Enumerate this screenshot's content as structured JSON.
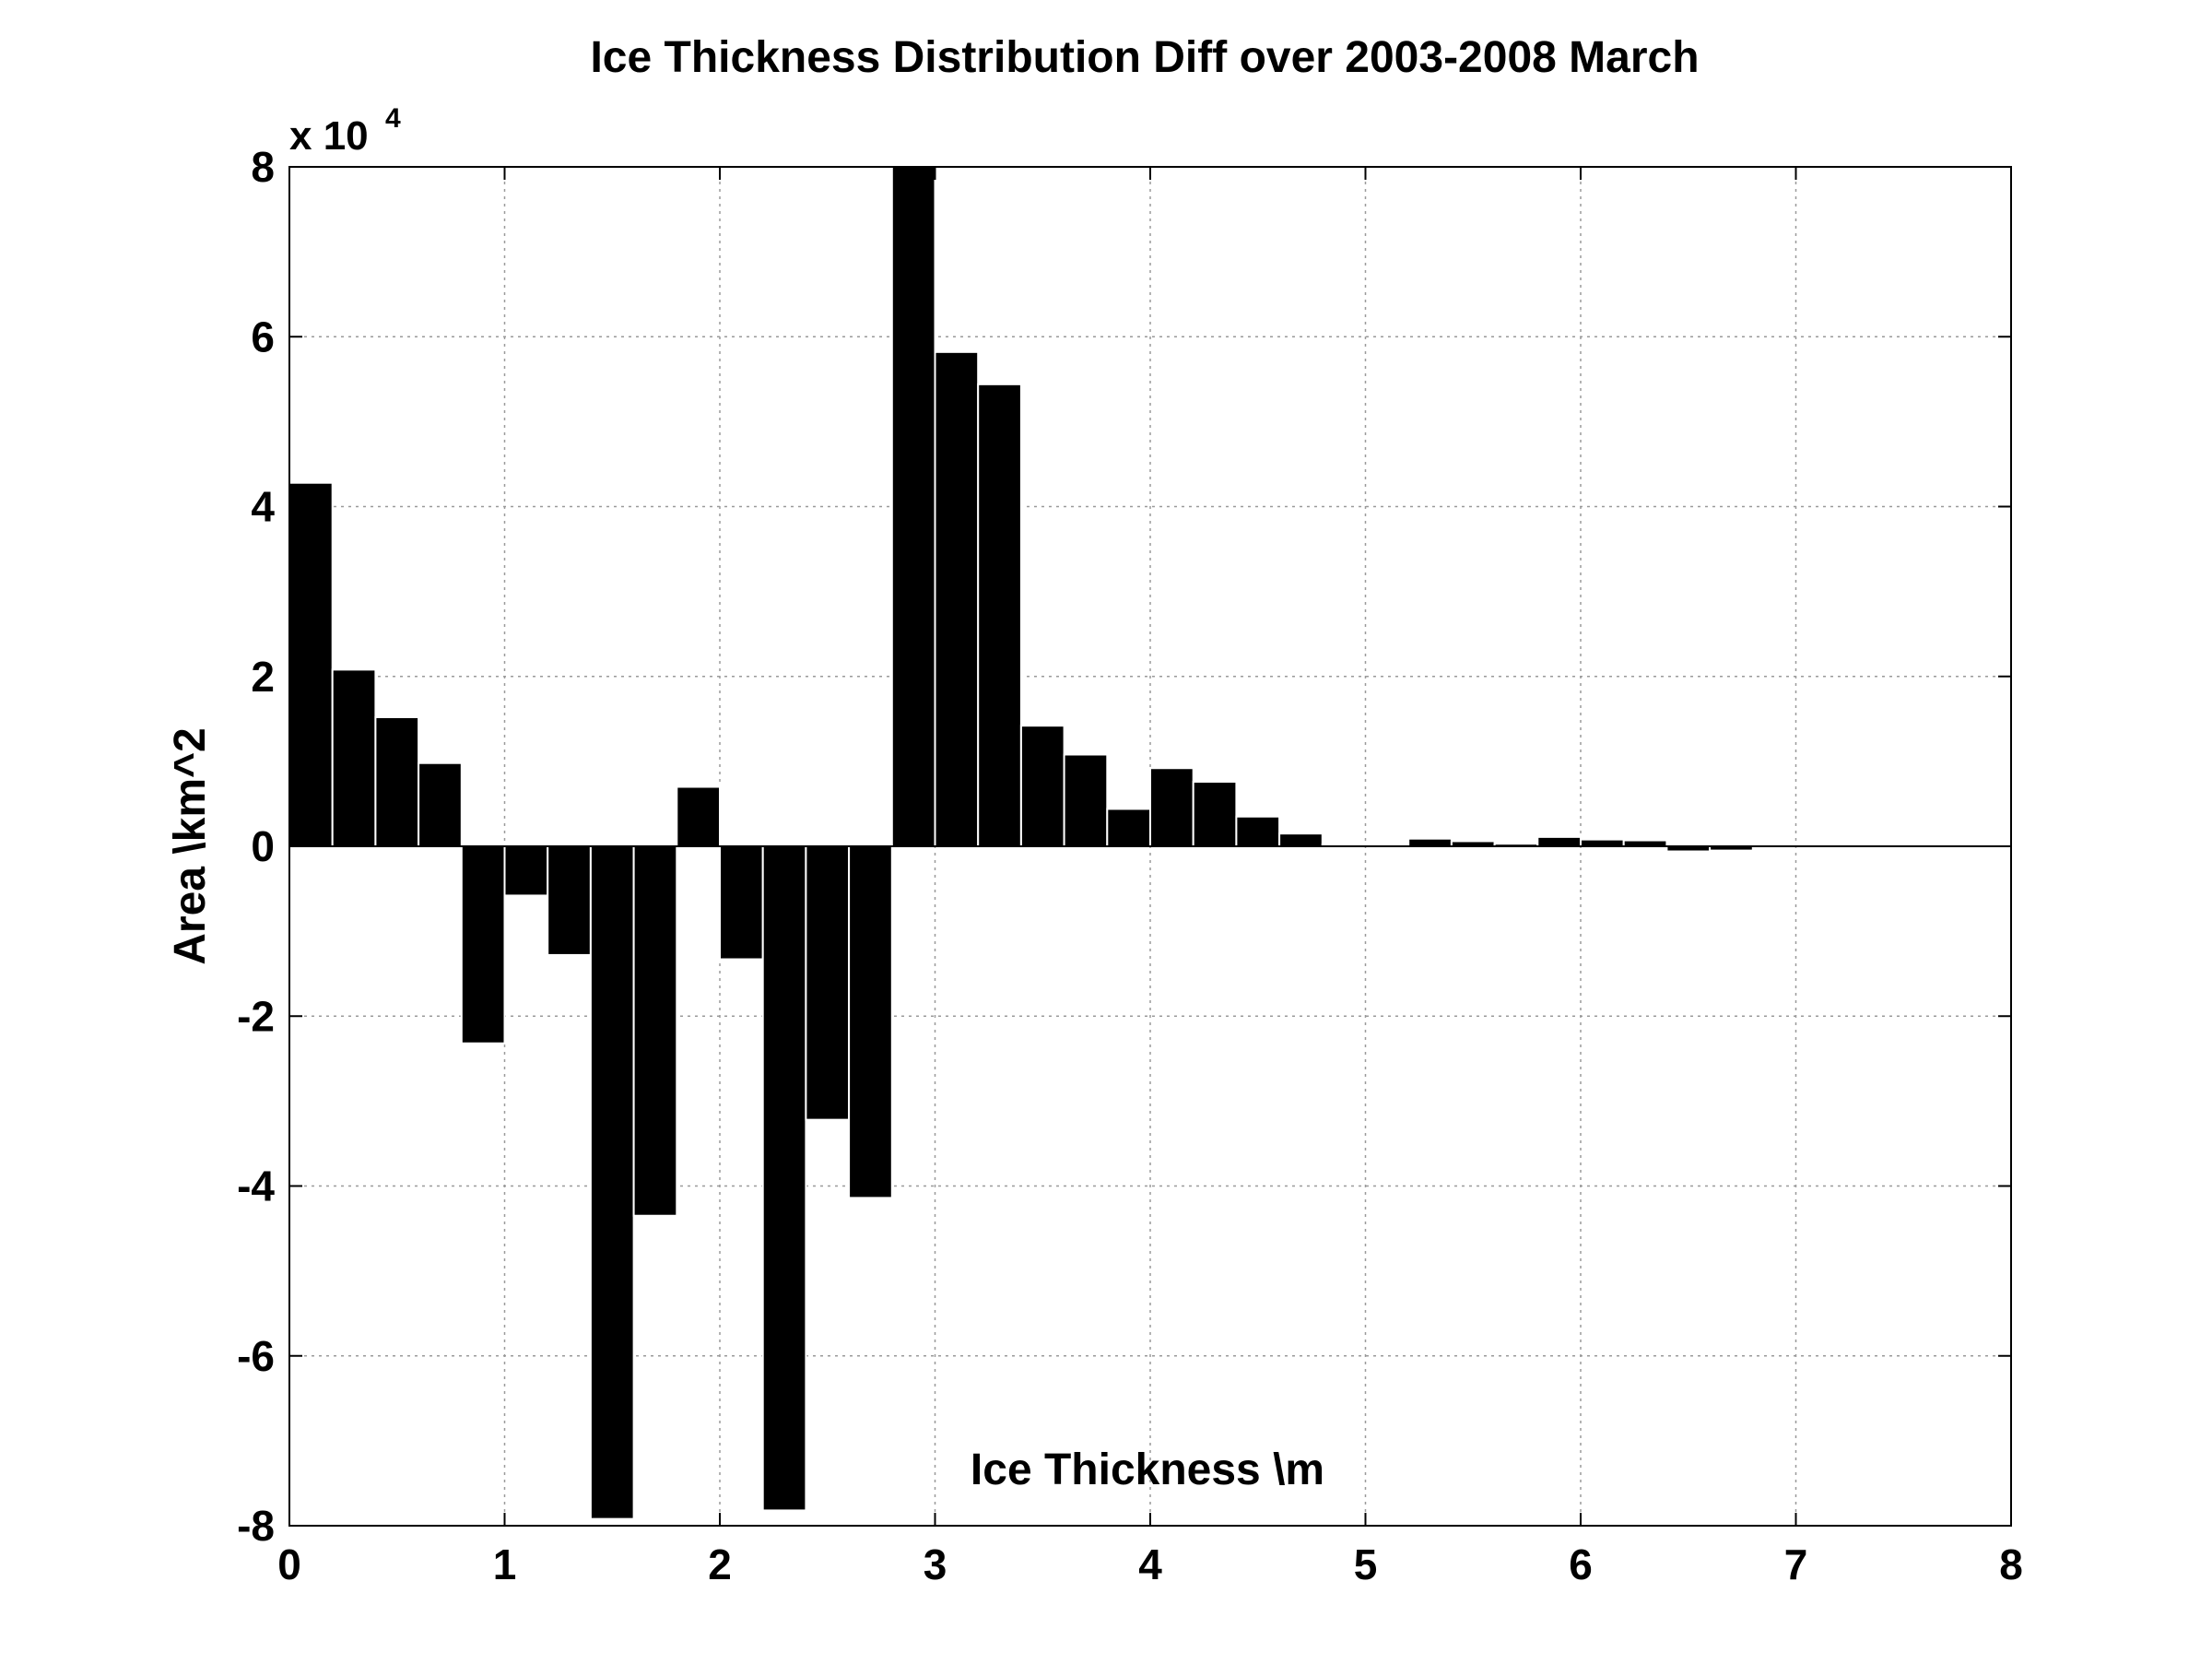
{
  "chart_data": {
    "type": "bar",
    "title": "Ice Thickness Distribution Diff over 2003-2008 March",
    "xlabel": "Ice Thickness \\m",
    "ylabel": "Area \\km^2",
    "y_exponent_label": {
      "base": "x 10",
      "power": "4"
    },
    "y_scale_factor": 10000,
    "xlim": [
      0,
      8
    ],
    "ylim": [
      -8,
      8
    ],
    "x_ticks": [
      0,
      1,
      2,
      3,
      4,
      5,
      6,
      7,
      8
    ],
    "y_ticks": [
      -8,
      -6,
      -4,
      -2,
      0,
      2,
      4,
      6,
      8
    ],
    "grid": true,
    "bar_width": 0.2,
    "bar_color": "#000000",
    "x": [
      0.1,
      0.3,
      0.5,
      0.7,
      0.9,
      1.1,
      1.3,
      1.5,
      1.7,
      1.9,
      2.1,
      2.3,
      2.5,
      2.7,
      2.9,
      3.1,
      3.3,
      3.5,
      3.7,
      3.9,
      4.1,
      4.3,
      4.5,
      4.7,
      4.9,
      5.1,
      5.3,
      5.5,
      5.7,
      5.9,
      6.1,
      6.3,
      6.5,
      6.7,
      6.9,
      7.1,
      7.3,
      7.5,
      7.7,
      7.9
    ],
    "values": [
      4.28,
      2.08,
      1.52,
      0.98,
      -2.32,
      -0.58,
      -1.28,
      -7.92,
      -4.35,
      0.7,
      -1.33,
      -7.82,
      -3.22,
      -4.14,
      8.0,
      5.82,
      5.44,
      1.42,
      1.08,
      0.44,
      0.92,
      0.76,
      0.35,
      0.15,
      0.02,
      0.02,
      0.09,
      0.06,
      0.03,
      0.11,
      0.08,
      0.07,
      -0.06,
      -0.05,
      0.01,
      0.01,
      0.0,
      0.0,
      0.0,
      0.0
    ]
  }
}
